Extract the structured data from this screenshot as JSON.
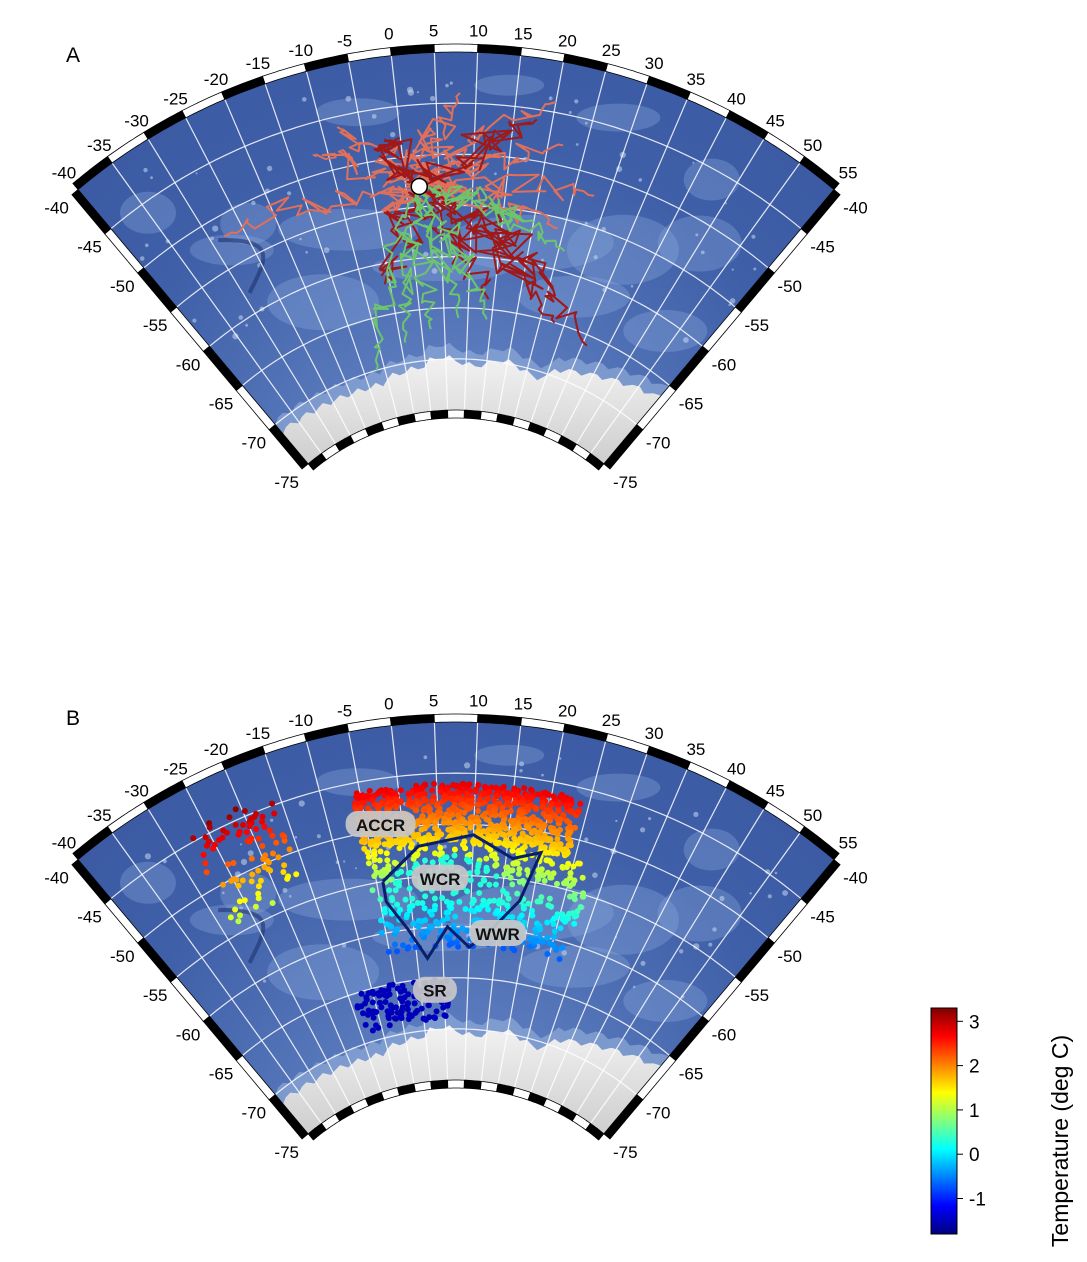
{
  "panels": [
    {
      "letter": "A"
    },
    {
      "letter": "B"
    }
  ],
  "map": {
    "lon_range": [
      -40,
      55
    ],
    "lat_range": [
      -75,
      -40
    ],
    "lon_ticks_top": [
      "-40",
      "-35",
      "-30",
      "-25",
      "-20",
      "-15",
      "-10",
      "-5",
      "0",
      "5",
      "10",
      "15",
      "20",
      "25",
      "30",
      "35",
      "40",
      "45",
      "50",
      "55"
    ],
    "lat_ticks": [
      "-40",
      "-45",
      "-50",
      "-55",
      "-60",
      "-65",
      "-70",
      "-75"
    ],
    "colors": {
      "ocean": "#3f5fa8",
      "ocean_light": "#6b8fcf",
      "ice": "#e8e8e8",
      "graticule": "#ffffff",
      "frame_dark": "#000000"
    }
  },
  "panel_a": {
    "release_marker": {
      "lon": 2.0,
      "lat": -53.0,
      "color": "#ffffff"
    },
    "track_colors": {
      "salmon": "#e0705a",
      "darkred": "#a01818",
      "green": "#6cc46c"
    }
  },
  "panel_b": {
    "regions": [
      {
        "label": "ACCR",
        "lon": -3,
        "lat": -49.5
      },
      {
        "label": "WCR",
        "lon": 5,
        "lat": -55.3
      },
      {
        "label": "WWR",
        "lon": 15,
        "lat": -60.5
      },
      {
        "label": "SR",
        "lon": 3,
        "lat": -66.2
      }
    ],
    "contour_color": "#0a1f6b"
  },
  "colorbar": {
    "title": "Temperature (deg C)",
    "ticks": [
      "3",
      "2",
      "1",
      "0",
      "-1"
    ],
    "tick_values": [
      3,
      2,
      1,
      0,
      -1
    ],
    "range": [
      -1.8,
      3.3
    ],
    "colors": [
      "#00007f",
      "#0000ff",
      "#007fff",
      "#00ffff",
      "#7fff7f",
      "#ffff00",
      "#ff7f00",
      "#ff0000",
      "#7f0000"
    ]
  }
}
